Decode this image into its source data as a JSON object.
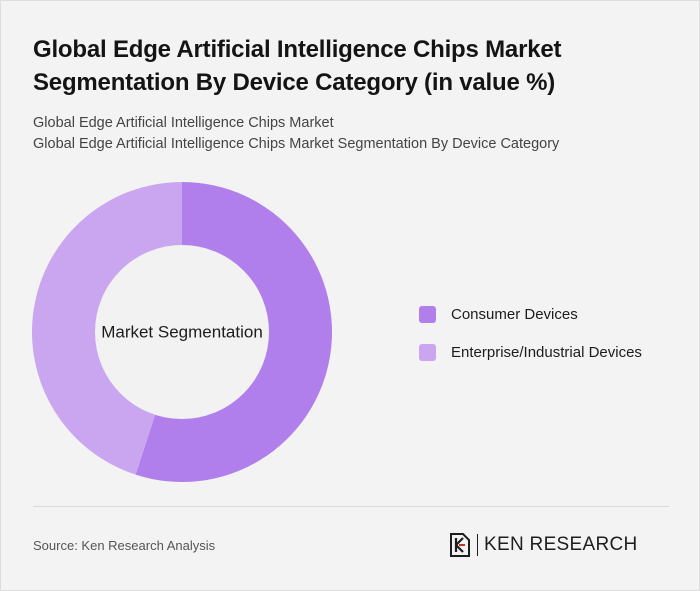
{
  "header": {
    "title": "Global Edge Artificial Intelligence Chips Market Segmentation By Device Category (in value %)",
    "subtitle_line1": "Global Edge Artificial Intelligence Chips Market",
    "subtitle_line2": "Global Edge Artificial Intelligence Chips Market Segmentation By Device Category"
  },
  "chart_data": {
    "type": "pie",
    "style": "donut",
    "center_label": "Market Segmentation",
    "categories": [
      "Consumer Devices",
      "Enterprise/Industrial Devices"
    ],
    "values": [
      55,
      45
    ],
    "unit": "%",
    "colors": [
      "#b07fec",
      "#caa6f0"
    ],
    "center_color": "#f2f2f2",
    "legend_position": "right"
  },
  "footer": {
    "source": "Source: Ken Research Analysis",
    "brand": "KEN RESEARCH",
    "brand_logo_icon": "ken-research-k-icon"
  }
}
